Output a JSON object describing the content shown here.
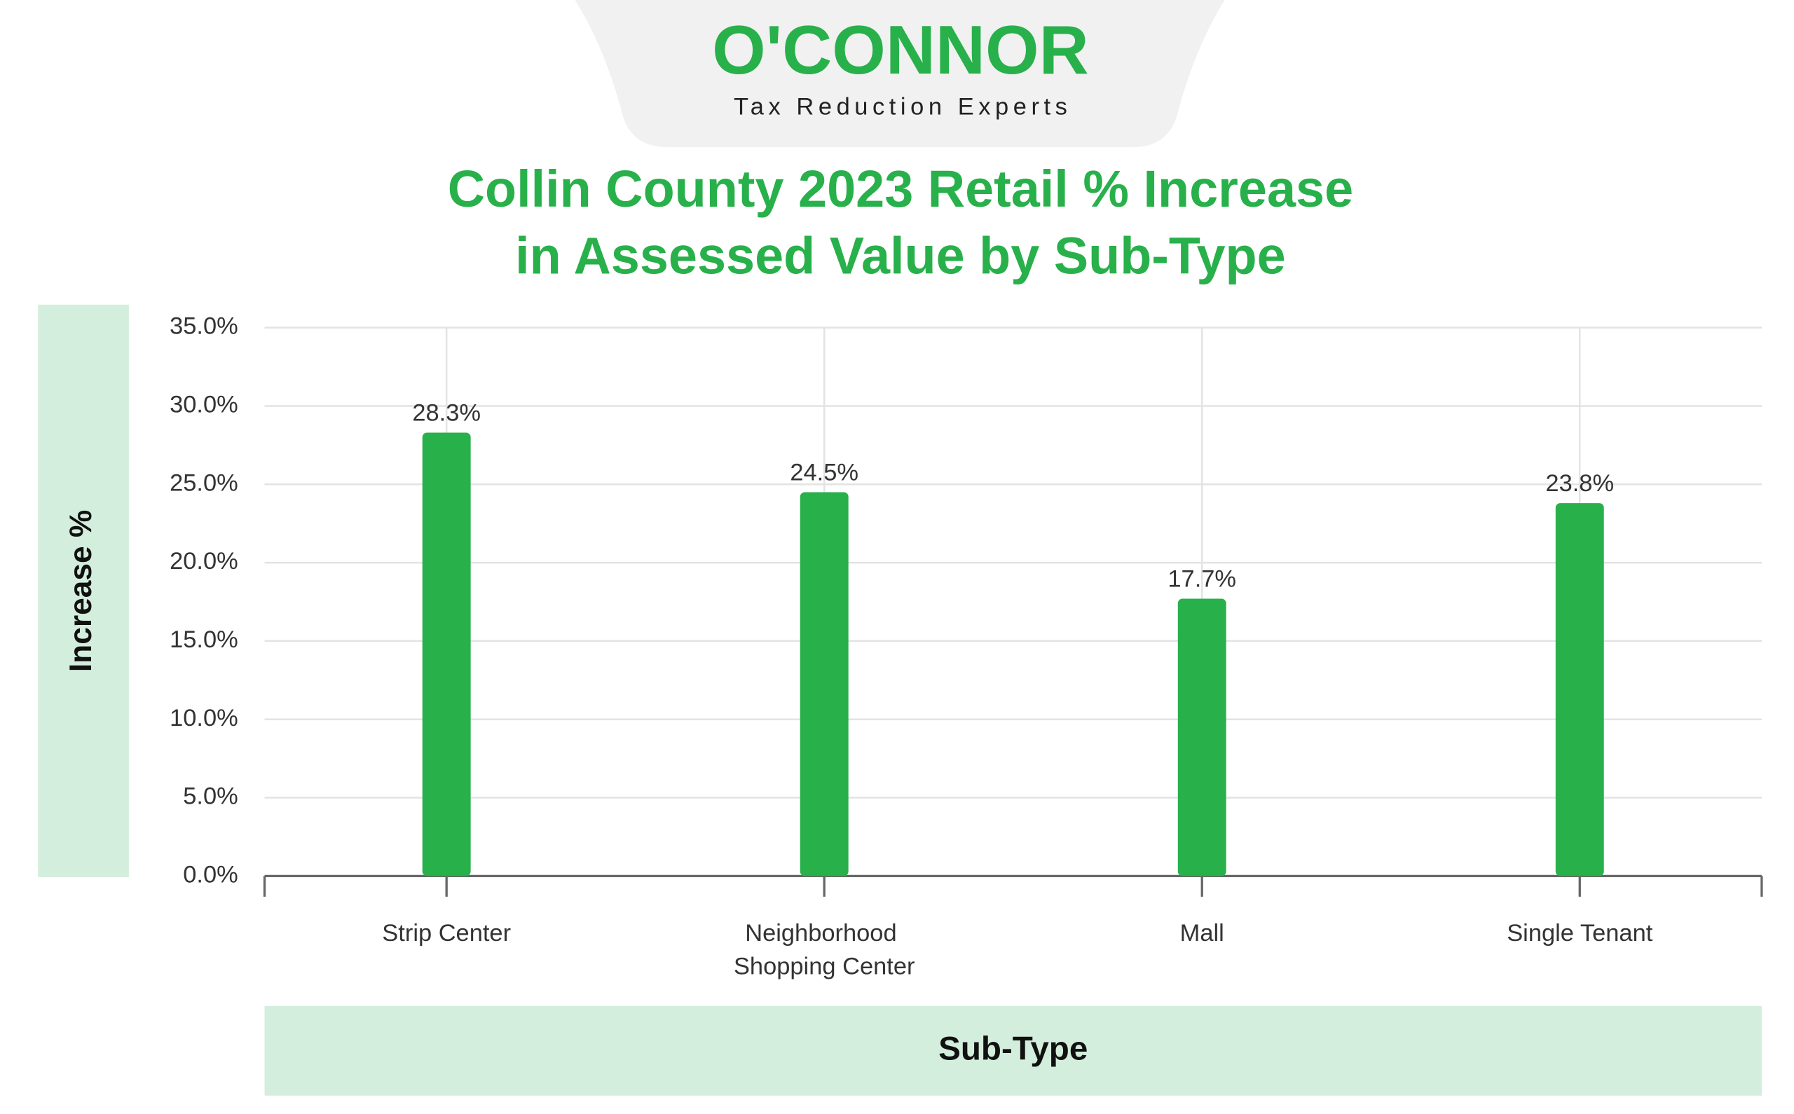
{
  "header": {
    "logo": "O'CONNOR",
    "tagline": "Tax Reduction Experts"
  },
  "chart_data": {
    "type": "bar",
    "title": [
      "Collin County 2023 Retail % Increase",
      "in Assessed Value by Sub-Type"
    ],
    "x_label": "Sub-Type",
    "y_label": "Increase %",
    "categories": [
      "Strip Center",
      "Neighborhood Shopping Center",
      "Mall",
      "Single Tenant"
    ],
    "values": [
      28.3,
      24.5,
      17.7,
      23.8
    ],
    "value_labels": [
      "28.3%",
      "24.5%",
      "17.7%",
      "23.8%"
    ],
    "color": "#28b04b",
    "ylim": [
      0,
      35
    ],
    "yticks": [
      {
        "value": 0,
        "label": "0.0%"
      },
      {
        "value": 5,
        "label": "5.0%"
      },
      {
        "value": 10,
        "label": "10.0%"
      },
      {
        "value": 15,
        "label": "15.0%"
      },
      {
        "value": 20,
        "label": "20.0%"
      },
      {
        "value": 25,
        "label": "25.0%"
      },
      {
        "value": 30,
        "label": "30.0%"
      },
      {
        "value": 35,
        "label": "35.0%"
      }
    ],
    "grid": true
  }
}
